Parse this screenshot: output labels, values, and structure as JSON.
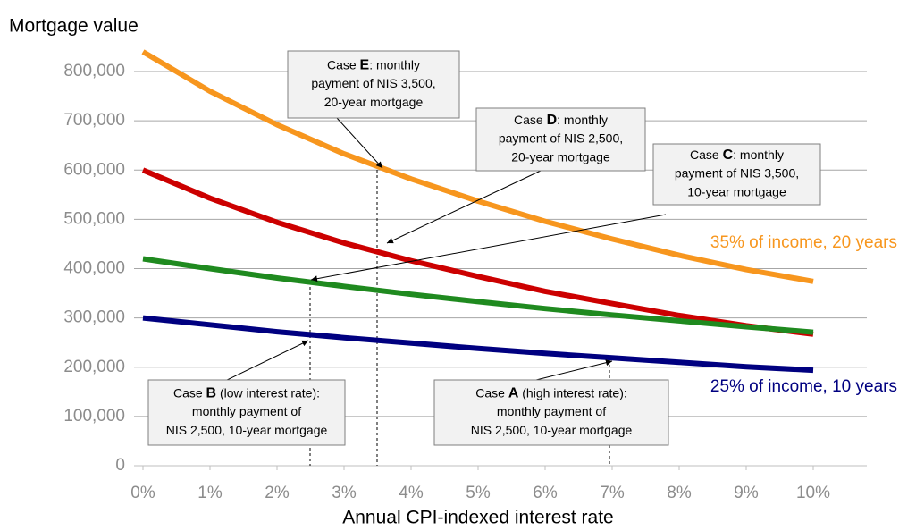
{
  "chart_data": {
    "type": "line",
    "y_axis_label": "Mortgage value",
    "x_axis_label": "Annual CPI-indexed interest rate",
    "x": [
      0,
      1,
      2,
      3,
      4,
      5,
      6,
      7,
      8,
      9,
      10
    ],
    "series": [
      {
        "name": "35% of income, 20 years",
        "color": "#f7961e",
        "values": [
          840000,
          760000,
          692000,
          633000,
          582000,
          537000,
          496000,
          460000,
          427000,
          398000,
          374000
        ]
      },
      {
        "color": "#cc0000",
        "values": [
          600000,
          543000,
          494000,
          452000,
          416000,
          384000,
          354000,
          329000,
          305000,
          284000,
          267000
        ]
      },
      {
        "color": "#1f8a1f",
        "values": [
          420000,
          400000,
          381000,
          364000,
          348000,
          333000,
          319000,
          306000,
          294000,
          282000,
          271000
        ]
      },
      {
        "name": "25% of income, 10 years",
        "color": "#000080",
        "values": [
          300000,
          286000,
          272000,
          260000,
          249000,
          238000,
          228000,
          219000,
          210000,
          201000,
          194000
        ]
      }
    ],
    "xlim": [
      0,
      10
    ],
    "xticks": [
      {
        "value": 0,
        "label": "0%"
      },
      {
        "value": 1,
        "label": "1%"
      },
      {
        "value": 2,
        "label": "2%"
      },
      {
        "value": 3,
        "label": "3%"
      },
      {
        "value": 4,
        "label": "4%"
      },
      {
        "value": 5,
        "label": "5%"
      },
      {
        "value": 6,
        "label": "6%"
      },
      {
        "value": 7,
        "label": "7%"
      },
      {
        "value": 8,
        "label": "8%"
      },
      {
        "value": 9,
        "label": "9%"
      },
      {
        "value": 10,
        "label": "10%"
      }
    ],
    "ylim": [
      0,
      800000
    ],
    "yticks": [
      0,
      {
        "value": 100000,
        "label": "100,000"
      },
      {
        "value": 200000,
        "label": "200,000"
      },
      {
        "value": 300000,
        "label": "300,000"
      },
      {
        "value": 400000,
        "label": "400,000"
      },
      {
        "value": 500000,
        "label": "500,000"
      },
      {
        "value": 600000,
        "label": "600,000"
      },
      {
        "value": 700000,
        "label": "700,000"
      },
      {
        "value": 800000,
        "label": "800,000"
      }
    ],
    "grid": true,
    "annotations": [
      {
        "prefix": "Case ",
        "letter": "E",
        "rest": ": monthly",
        "lines": [
          "payment of NIS 3,500,",
          "20-year mortgage"
        ]
      },
      {
        "prefix": "Case ",
        "letter": "D",
        "rest": ": monthly",
        "lines": [
          "payment of NIS 2,500,",
          "20-year mortgage"
        ]
      },
      {
        "prefix": "Case ",
        "letter": "C",
        "rest": ": monthly",
        "lines": [
          "payment of NIS 3,500,",
          "10-year mortgage"
        ]
      },
      {
        "prefix": "Case ",
        "letter": "B",
        "rest": " (low interest rate):",
        "lines": [
          "monthly payment of",
          "NIS 2,500, 10-year mortgage"
        ]
      },
      {
        "prefix": "Case ",
        "letter": "A",
        "rest": " (high interest rate):",
        "lines": [
          "monthly payment of",
          "NIS 2,500, 10-year mortgage"
        ]
      }
    ]
  }
}
